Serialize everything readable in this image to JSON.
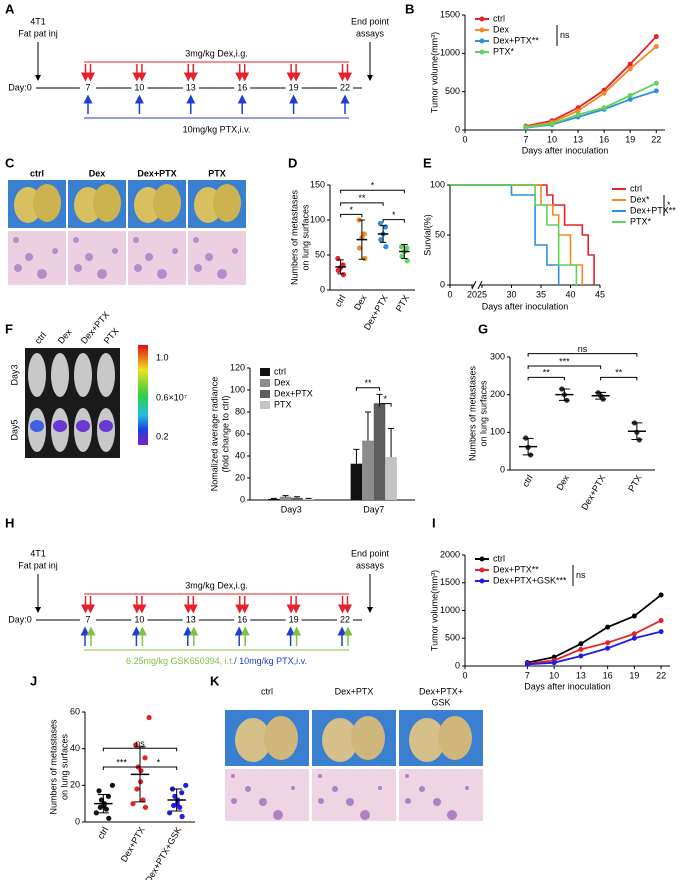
{
  "panel_letters": [
    "A",
    "B",
    "C",
    "D",
    "E",
    "F",
    "G",
    "H",
    "I",
    "J",
    "K"
  ],
  "timeline_a": {
    "start_top": "4T1",
    "start_bottom": "Fat pat inj",
    "end_top": "End point",
    "end_bottom": "assays",
    "dex": "3mg/kg Dex,i.g.",
    "day0": "Day:0",
    "days": [
      7,
      10,
      13,
      16,
      19,
      22
    ],
    "ptx": "10mg/kg PTX,i.v."
  },
  "timeline_h": {
    "start_top": "4T1",
    "start_bottom": "Fat pat inj",
    "end_top": "End point",
    "end_bottom": "assays",
    "dex": "3mg/kg Dex,i.g.",
    "day0": "Day:0",
    "days": [
      7,
      10,
      13,
      16,
      19,
      22
    ],
    "gsk": "6.25mg/kg GSK650394, i.t.",
    "ptx": "/ 10mg/kg PTX,i.v."
  },
  "panel_c": {
    "labels": [
      "ctrl",
      "Dex",
      "Dex+PTX",
      "PTX"
    ]
  },
  "panel_f": {
    "groups": [
      "ctrl",
      "Dex",
      "Dex+PTX",
      "PTX"
    ],
    "rows": [
      "Day3",
      "Day5"
    ],
    "colorbar": [
      "1.0",
      "0.6×10⁷",
      "0.2"
    ]
  },
  "panel_k": {
    "labels": [
      "ctrl",
      "Dex+PTX",
      "Dex+PTX+"
    ],
    "label_line2": "GSK"
  },
  "chart_data": [
    {
      "type": "line",
      "ylabel": "Tumor volume(mm³)",
      "xlabel": "Days after inoculation",
      "x": [
        7,
        10,
        13,
        16,
        19,
        22
      ],
      "xlim": [
        0,
        23
      ],
      "xticks": [
        0,
        7,
        10,
        13,
        16,
        19,
        22
      ],
      "ylim": [
        0,
        1500
      ],
      "yticks": [
        0,
        500,
        1000,
        1500
      ],
      "legend": "upper left",
      "annotation": "ns",
      "series": [
        {
          "name": "ctrl",
          "color": "#e8202a",
          "values": [
            50,
            120,
            290,
            520,
            860,
            1220
          ]
        },
        {
          "name": "Dex",
          "color": "#f08a24",
          "values": [
            40,
            100,
            250,
            480,
            800,
            1090
          ]
        },
        {
          "name": "Dex+PTX**",
          "color": "#2f8fe0",
          "values": [
            30,
            70,
            170,
            270,
            400,
            510
          ]
        },
        {
          "name": "PTX*",
          "color": "#5fd35a",
          "values": [
            35,
            80,
            200,
            290,
            450,
            610
          ]
        }
      ]
    },
    {
      "type": "dot",
      "ylabel": [
        "Numbers of metastases",
        "on lung surfaces"
      ],
      "categories": [
        "ctrl",
        "Dex",
        "Dex+PTX",
        "PTX"
      ],
      "colors": [
        "#e8202a",
        "#f08a24",
        "#2f8fe0",
        "#5fd35a"
      ],
      "values": [
        33,
        72,
        80,
        55
      ],
      "errors": [
        10,
        28,
        12,
        10
      ],
      "points": [
        [
          22,
          28,
          32,
          36,
          45
        ],
        [
          45,
          60,
          75,
          80,
          100
        ],
        [
          62,
          72,
          80,
          90,
          95
        ],
        [
          42,
          48,
          55,
          60,
          62
        ]
      ],
      "ylim": [
        0,
        150
      ],
      "yticks": [
        0,
        50,
        100,
        150
      ],
      "significance": [
        "*",
        "**",
        "*",
        "*"
      ]
    },
    {
      "type": "survival",
      "ylabel": "Survial(%)",
      "xlabel": "Days after inoculation",
      "xlim": [
        0,
        45
      ],
      "xbreak": [
        20,
        25
      ],
      "xticks": [
        0,
        20,
        25,
        30,
        35,
        40,
        45
      ],
      "ylim": [
        0,
        100
      ],
      "yticks": [
        0,
        50,
        100
      ],
      "legend": "right",
      "annotation": "*",
      "series": [
        {
          "name": "ctrl",
          "color": "#e8202a",
          "x": [
            0,
            36,
            36,
            37,
            37,
            39,
            39,
            42,
            42,
            43,
            43,
            44,
            44
          ],
          "values": [
            100,
            100,
            90,
            90,
            80,
            80,
            60,
            60,
            50,
            50,
            30,
            30,
            0
          ]
        },
        {
          "name": "Dex*",
          "color": "#f08a24",
          "x": [
            0,
            35,
            35,
            37,
            37,
            38,
            38,
            40,
            40,
            42,
            42
          ],
          "values": [
            100,
            100,
            80,
            80,
            70,
            70,
            50,
            50,
            20,
            20,
            0
          ]
        },
        {
          "name": "Dex+PTX**",
          "color": "#2f8fe0",
          "x": [
            0,
            30,
            30,
            34,
            34,
            36,
            36,
            38,
            38
          ],
          "values": [
            100,
            100,
            90,
            90,
            40,
            40,
            20,
            20,
            0
          ]
        },
        {
          "name": "PTX*",
          "color": "#5fd35a",
          "x": [
            0,
            34,
            34,
            36,
            36,
            38,
            38,
            41,
            41
          ],
          "values": [
            100,
            100,
            80,
            80,
            60,
            60,
            20,
            20,
            0
          ]
        }
      ]
    },
    {
      "type": "bar",
      "ylabel": [
        "Nomalized average radiance",
        "(fold change to ctrl)"
      ],
      "categories": [
        "Day3",
        "Day7"
      ],
      "ylim": [
        0,
        120
      ],
      "yticks": [
        0,
        20,
        40,
        60,
        80,
        100,
        120
      ],
      "legend": "upper left",
      "significance": [
        "**",
        "*"
      ],
      "series": [
        {
          "name": "ctrl",
          "color": "#111111",
          "values": [
            1,
            33
          ],
          "errors": [
            0.5,
            13
          ]
        },
        {
          "name": "Dex",
          "color": "#8c8c8c",
          "values": [
            3,
            54
          ],
          "errors": [
            1,
            26
          ]
        },
        {
          "name": "Dex+PTX",
          "color": "#5e5e5e",
          "values": [
            2,
            88
          ],
          "errors": [
            1,
            8
          ]
        },
        {
          "name": "PTX",
          "color": "#c4c4c4",
          "values": [
            1,
            39
          ],
          "errors": [
            0.5,
            26
          ]
        }
      ]
    },
    {
      "type": "dot",
      "ylabel": [
        "Numbers of metastases",
        "on lung surfaces"
      ],
      "categories": [
        "ctrl",
        "Dex",
        "Dex+PTX",
        "PTX"
      ],
      "colors": [
        "#333333",
        "#333333",
        "#333333",
        "#333333"
      ],
      "values": [
        62,
        200,
        197,
        103
      ],
      "errors": [
        22,
        15,
        9,
        22
      ],
      "points": [
        [
          40,
          60,
          85
        ],
        [
          185,
          200,
          215
        ],
        [
          188,
          197,
          205
        ],
        [
          80,
          100,
          125
        ]
      ],
      "ylim": [
        0,
        300
      ],
      "yticks": [
        0,
        100,
        200,
        300
      ],
      "significance": [
        "ns",
        "***",
        "**",
        "**"
      ]
    },
    {
      "type": "line",
      "ylabel": "Tumor volume(mm³)",
      "xlabel": "Days after inoculation",
      "x": [
        7,
        10,
        13,
        16,
        19,
        22
      ],
      "xlim": [
        0,
        23
      ],
      "xticks": [
        0,
        7,
        10,
        13,
        16,
        19,
        22
      ],
      "ylim": [
        0,
        2000
      ],
      "yticks": [
        0,
        500,
        1000,
        1500,
        2000
      ],
      "legend": "upper left",
      "annotation": "ns",
      "series": [
        {
          "name": "ctrl",
          "color": "#000000",
          "values": [
            60,
            160,
            400,
            700,
            900,
            1280
          ]
        },
        {
          "name": "Dex+PTX**",
          "color": "#e8202a",
          "values": [
            40,
            100,
            300,
            420,
            580,
            820
          ]
        },
        {
          "name": "Dex+PTX+GSK***",
          "color": "#1f1fe0",
          "values": [
            30,
            60,
            180,
            320,
            500,
            620
          ]
        }
      ]
    },
    {
      "type": "dot",
      "ylabel": [
        "Numbers of metastases",
        "on lung surfaces"
      ],
      "categories": [
        "ctrl",
        "Dex+PTX",
        "Dex+PTX+GSK"
      ],
      "colors": [
        "#111111",
        "#e8202a",
        "#1f1fe0"
      ],
      "values": [
        10,
        26,
        12
      ],
      "errors": [
        5,
        15,
        6
      ],
      "points": [
        [
          2,
          5,
          7,
          8,
          9,
          10,
          12,
          14,
          17,
          20
        ],
        [
          8,
          10,
          12,
          18,
          22,
          28,
          30,
          35,
          42,
          57
        ],
        [
          3,
          5,
          8,
          9,
          10,
          12,
          14,
          16,
          18,
          20
        ]
      ],
      "ylim": [
        0,
        60
      ],
      "yticks": [
        0,
        20,
        40,
        60
      ],
      "significance": [
        "ns",
        "***",
        "*"
      ]
    }
  ]
}
